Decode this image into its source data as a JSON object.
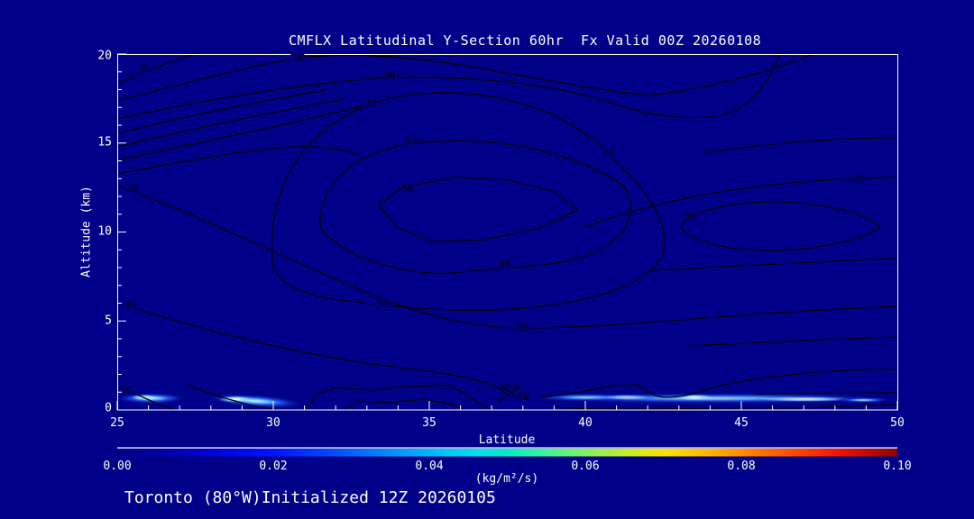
{
  "title": "CMFLX Latitudinal Y-Section 60hr  Fx Valid 00Z 20260108",
  "footer": "Toronto (80°W)Initialized 12Z 20260105",
  "axes": {
    "x_label": "Latitude",
    "y_label": "Altitude (km)",
    "x_ticks": [
      "25",
      "30",
      "35",
      "40",
      "45",
      "50"
    ],
    "y_ticks": [
      "20",
      "15",
      "10",
      "5",
      "0"
    ]
  },
  "colorbar": {
    "tick_labels": [
      "0.00",
      "0.02",
      "0.04",
      "0.06",
      "0.08",
      "0.10"
    ],
    "units": "(kg/m²/s)"
  },
  "chart_data": {
    "type": "contour",
    "title": "CMFLX Latitudinal Y-Section 60hr  Fx Valid 00Z 20260108",
    "xlabel": "Latitude",
    "ylabel": "Altitude (km)",
    "xlim": [
      25,
      50
    ],
    "ylim": [
      0,
      20
    ],
    "x_ticks": [
      25,
      30,
      35,
      40,
      45,
      50
    ],
    "y_ticks": [
      0,
      5,
      10,
      15,
      20
    ],
    "grid": false,
    "contour_levels_labeled": [
      0,
      10,
      20,
      30,
      40,
      50
    ],
    "contour_interval": 5,
    "max_region": {
      "lat": 35,
      "altitude_km": 12,
      "value_greater_than": 50
    },
    "contour_labels": [
      {
        "value": "0",
        "lat": 25.9,
        "alt_km": 19.2
      },
      {
        "value": "10",
        "lat": 30.8,
        "alt_km": 19.8
      },
      {
        "value": "20",
        "lat": 33.7,
        "alt_km": 18.8
      },
      {
        "value": "30",
        "lat": 33.1,
        "alt_km": 17.2
      },
      {
        "value": "40",
        "lat": 34.5,
        "alt_km": 15.1
      },
      {
        "value": "50",
        "lat": 34.3,
        "alt_km": 12.3
      },
      {
        "value": "30",
        "lat": 40.8,
        "alt_km": 14.4
      },
      {
        "value": "20",
        "lat": 48.8,
        "alt_km": 13.0
      },
      {
        "value": "30",
        "lat": 43.4,
        "alt_km": 10.8
      },
      {
        "value": "40",
        "lat": 37.4,
        "alt_km": 8.3
      },
      {
        "value": "20",
        "lat": 38.0,
        "alt_km": 4.6
      },
      {
        "value": "20",
        "lat": 25.5,
        "alt_km": 12.5
      },
      {
        "value": "10",
        "lat": 25.4,
        "alt_km": 5.9
      },
      {
        "value": "0",
        "lat": 25.3,
        "alt_km": 1.1
      },
      {
        "value": "10",
        "lat": 38.0,
        "alt_km": 0.8
      },
      {
        "value": "30",
        "lat": 33.5,
        "alt_km": 6.0
      }
    ],
    "colorbar": {
      "min": 0.0,
      "max": 0.1,
      "tick_values": [
        0.0,
        0.02,
        0.04,
        0.06,
        0.08,
        0.1
      ],
      "units": "(kg/m²/s)",
      "palette": [
        "#000089",
        "#0000d8",
        "#0050ff",
        "#00bfff",
        "#00ecc8",
        "#7df35e",
        "#f7e400",
        "#ffb400",
        "#ff7800",
        "#f01000",
        "#8f0000"
      ]
    },
    "surface_shading_band": {
      "description": "thin shaded moisture-flux band near the surface (0-1 km)",
      "segments": [
        {
          "lat_start": 25.1,
          "lat_end": 27.1,
          "peak_lat": 25.9,
          "peak_value_est": 0.035
        },
        {
          "lat_start": 27.8,
          "lat_end": 31.3,
          "peak_lat": 28.8,
          "peak_value_est": 0.04
        },
        {
          "lat_start": 38.2,
          "lat_end": 50.0,
          "peak_lat": 43.5,
          "peak_value_est": 0.035
        }
      ]
    },
    "colors": {
      "background": "#000089",
      "contour_line": "#000000",
      "frame_text": "#ffffff"
    }
  }
}
